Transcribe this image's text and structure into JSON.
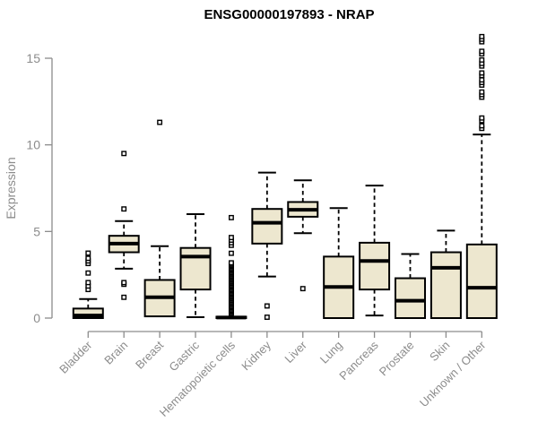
{
  "page": {
    "background": "#FFFFFF"
  },
  "chart_data": {
    "type": "boxplot",
    "title": "ENSG00000197893 - NRAP",
    "ylabel": "Expression",
    "xlabel": "",
    "yticks": [
      0,
      5,
      10,
      15
    ],
    "ylim": [
      0,
      16.5
    ],
    "grid": false,
    "legend": "none",
    "colors": {
      "box_fill": "#EDE7CF",
      "box_stroke": "#000000",
      "median": "#000000",
      "whisker": "#000000",
      "outlier_fill": "#FFFFFF",
      "axis": "#8C8C8C",
      "tick_label": "#8C8C8C",
      "category_label": "#8C8C8C",
      "title": "#000000"
    },
    "categories": [
      "Bladder",
      "Brain",
      "Breast",
      "Gastric",
      "Hematopoietic cells",
      "Kidney",
      "Liver",
      "Lung",
      "Pancreas",
      "Prostate",
      "Skin",
      "Unknown / Other"
    ],
    "series": [
      {
        "category": "Bladder",
        "whisker_low": 0,
        "q1": 0,
        "median": 0.15,
        "q3": 0.55,
        "whisker_high": 1.1,
        "outliers": [
          1.65,
          1.85,
          2.05,
          2.6,
          3.15,
          3.3,
          3.45,
          3.75
        ]
      },
      {
        "category": "Brain",
        "whisker_low": 2.85,
        "q1": 3.8,
        "median": 4.3,
        "q3": 4.75,
        "whisker_high": 5.6,
        "outliers": [
          1.2,
          1.95,
          2.05,
          6.3,
          9.5
        ]
      },
      {
        "category": "Breast",
        "whisker_low": 0.1,
        "q1": 0.1,
        "median": 1.2,
        "q3": 2.2,
        "whisker_high": 4.15,
        "outliers": [
          11.3
        ]
      },
      {
        "category": "Gastric",
        "whisker_low": 0.05,
        "q1": 1.65,
        "median": 3.55,
        "q3": 4.05,
        "whisker_high": 6.0,
        "outliers": []
      },
      {
        "category": "Hematopoietic cells",
        "whisker_low": 0,
        "q1": 0,
        "median": 0.03,
        "q3": 0.08,
        "whisker_high": 0.1,
        "outliers": [
          0.25,
          0.32,
          0.39,
          0.46,
          0.53,
          0.6,
          0.67,
          0.74,
          0.81,
          0.88,
          0.95,
          1.02,
          1.09,
          1.16,
          1.23,
          1.3,
          1.37,
          1.44,
          1.51,
          1.58,
          1.65,
          1.72,
          1.79,
          1.86,
          1.93,
          2.0,
          2.07,
          2.14,
          2.21,
          2.28,
          2.35,
          2.42,
          2.49,
          2.56,
          2.63,
          2.7,
          2.77,
          2.84,
          2.91,
          2.98,
          3.05,
          3.12,
          3.19,
          3.74,
          4.2,
          4.35,
          4.5,
          4.65,
          5.8
        ]
      },
      {
        "category": "Kidney",
        "whisker_low": 2.4,
        "q1": 4.3,
        "median": 5.5,
        "q3": 6.3,
        "whisker_high": 8.4,
        "outliers": [
          0.05,
          0.7
        ]
      },
      {
        "category": "Liver",
        "whisker_low": 4.9,
        "q1": 5.85,
        "median": 6.25,
        "q3": 6.7,
        "whisker_high": 7.95,
        "outliers": [
          1.7
        ]
      },
      {
        "category": "Lung",
        "whisker_low": 0,
        "q1": 0,
        "median": 1.8,
        "q3": 3.55,
        "whisker_high": 6.35,
        "outliers": []
      },
      {
        "category": "Pancreas",
        "whisker_low": 0.15,
        "q1": 1.65,
        "median": 3.3,
        "q3": 4.35,
        "whisker_high": 7.65,
        "outliers": []
      },
      {
        "category": "Prostate",
        "whisker_low": 0,
        "q1": 0,
        "median": 1.0,
        "q3": 2.3,
        "whisker_high": 3.7,
        "outliers": []
      },
      {
        "category": "Skin",
        "whisker_low": 0,
        "q1": 0,
        "median": 2.9,
        "q3": 3.8,
        "whisker_high": 5.05,
        "outliers": []
      },
      {
        "category": "Unknown / Other",
        "whisker_low": 0,
        "q1": 0,
        "median": 1.75,
        "q3": 4.25,
        "whisker_high": 10.6,
        "outliers": [
          10.95,
          11.1,
          11.4,
          11.55,
          12.75,
          12.9,
          13.05,
          13.45,
          13.6,
          13.75,
          14.0,
          14.15,
          14.55,
          14.7,
          14.9,
          15.25,
          15.4,
          15.95,
          16.1,
          16.25
        ]
      }
    ]
  }
}
